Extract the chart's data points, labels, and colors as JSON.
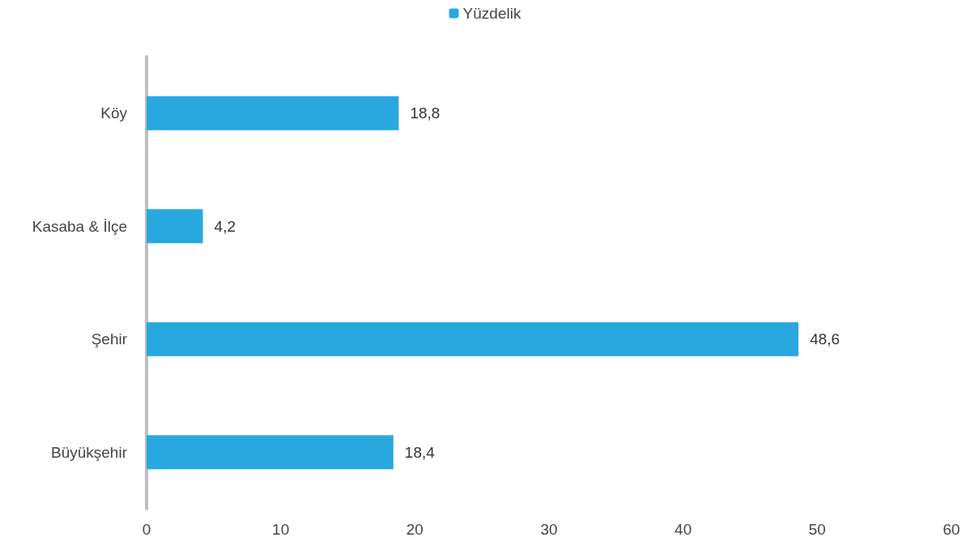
{
  "chart_data": {
    "type": "bar",
    "orientation": "horizontal",
    "categories": [
      "Köy",
      "Kasaba & İlçe",
      "Şehir",
      "Büyükşehir"
    ],
    "series": [
      {
        "name": "Yüzdelik",
        "color": "#29a8e0",
        "values": [
          18.8,
          4.2,
          48.6,
          18.4
        ],
        "value_labels": [
          "18,8",
          "4,2",
          "48,6",
          "18,4"
        ]
      }
    ],
    "xlim": [
      0,
      60
    ],
    "xticks": [
      0,
      10,
      20,
      30,
      40,
      50,
      60
    ],
    "grid": false,
    "legend": "top"
  }
}
